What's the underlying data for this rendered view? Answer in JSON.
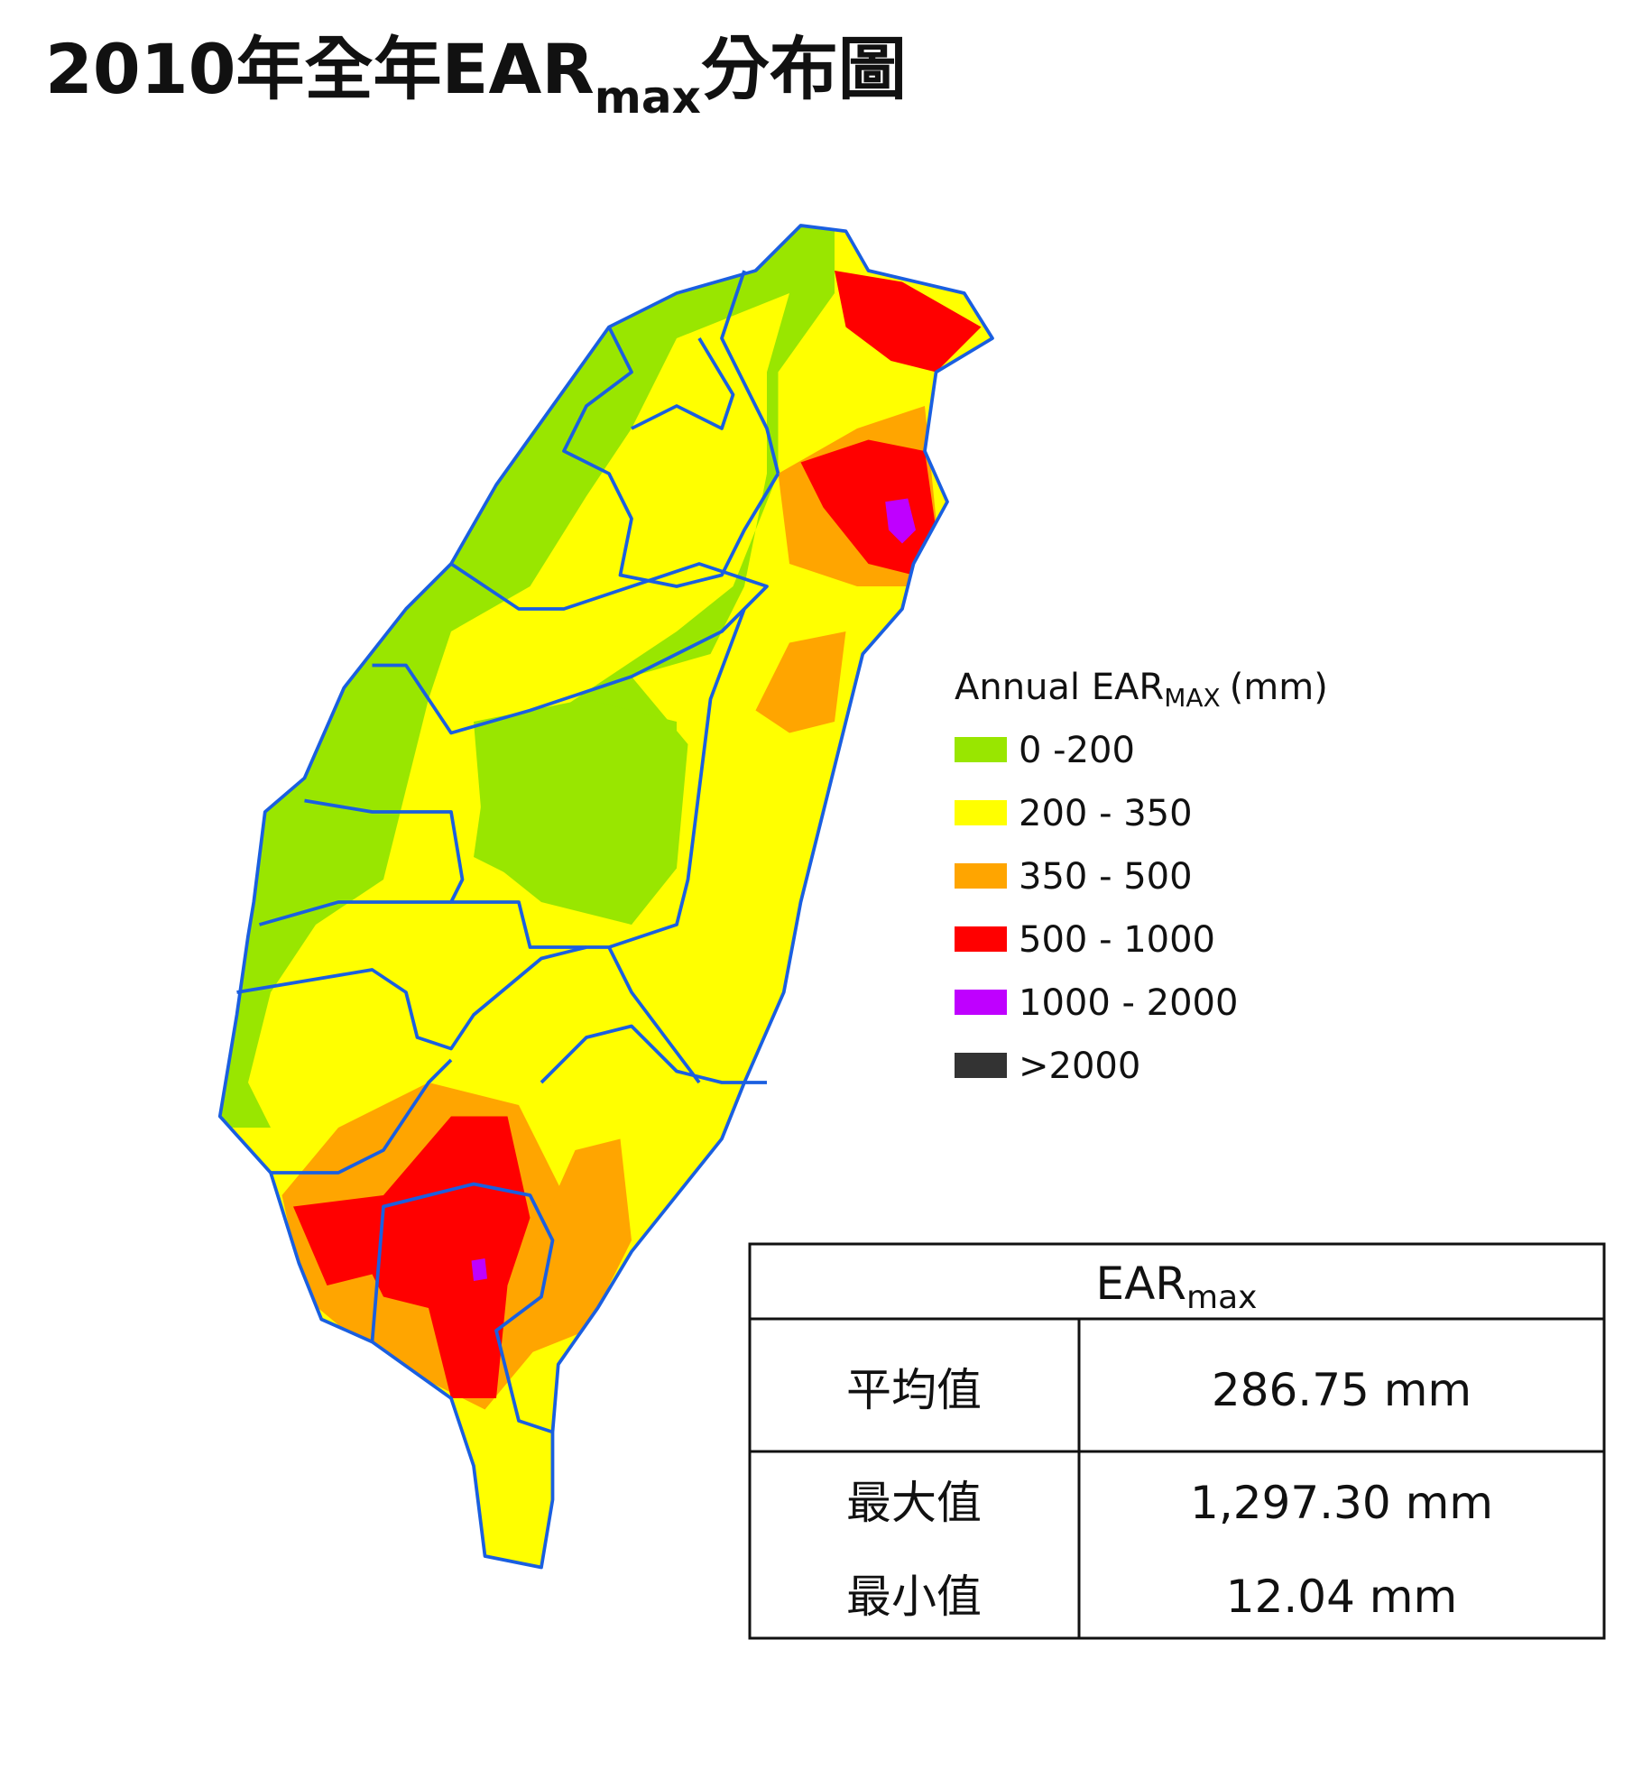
{
  "title": {
    "main": "2010年全年EAR",
    "sub": "max",
    "end": "分布圖"
  },
  "legend": {
    "title": "Annual EAR",
    "title_sub": "MAX",
    "title_unit": "(mm)",
    "items": [
      {
        "label": "0 -200",
        "color": "#99e600"
      },
      {
        "label": "200 - 350",
        "color": "#ffff00"
      },
      {
        "label": "350 - 500",
        "color": "#ffa500"
      },
      {
        "label": "500 - 1000",
        "color": "#ff0000"
      },
      {
        "label": "1000 - 2000",
        "color": "#bf00ff"
      },
      {
        "label": ">2000",
        "color": "#333333"
      }
    ]
  },
  "table": {
    "header": {
      "main": "EAR",
      "sub": "max"
    },
    "rows": [
      [
        "平均值",
        "286.75 mm"
      ],
      [
        "最大值",
        "1,297.30 mm"
      ],
      [
        "最小值",
        "12.04 mm"
      ]
    ]
  }
}
